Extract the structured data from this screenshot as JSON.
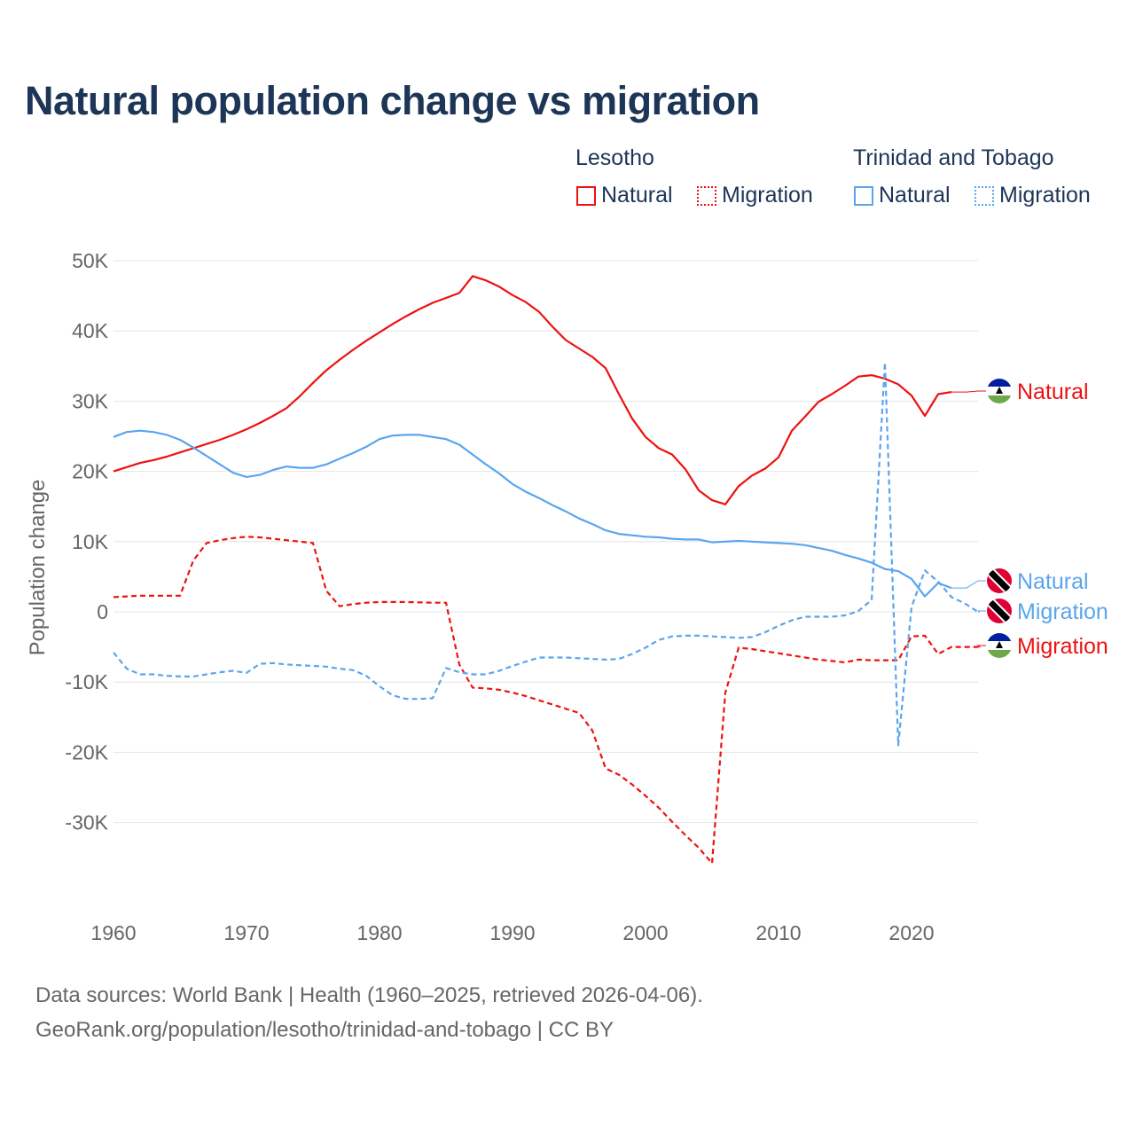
{
  "title": "Natural population change vs migration",
  "legend": {
    "groups": [
      {
        "name": "Lesotho",
        "items": [
          {
            "label": "Natural",
            "style": "solid"
          },
          {
            "label": "Migration",
            "style": "dotted"
          }
        ],
        "color": "#ee1111"
      },
      {
        "name": "Trinidad and Tobago",
        "items": [
          {
            "label": "Natural",
            "style": "solid"
          },
          {
            "label": "Migration",
            "style": "dotted"
          }
        ],
        "color": "#5aa5ee"
      }
    ]
  },
  "footer": {
    "line1": "Data sources: World Bank | Health (1960–2025, retrieved 2026-04-06).",
    "line2": "GeoRank.org/population/lesotho/trinidad-and-tobago | CC BY"
  },
  "chart_data": {
    "type": "line",
    "title": "Natural population change vs migration",
    "xlabel": "",
    "ylabel": "Population change",
    "xlim": [
      1960,
      2025
    ],
    "ylim": [
      -38000,
      52000
    ],
    "x_ticks": [
      1960,
      1970,
      1980,
      1990,
      2000,
      2010,
      2020
    ],
    "x_tick_labels": [
      "1960",
      "1970",
      "1980",
      "1990",
      "2000",
      "2010",
      "2020"
    ],
    "y_ticks": [
      -30000,
      -20000,
      -10000,
      0,
      10000,
      20000,
      30000,
      40000,
      50000
    ],
    "y_tick_labels": [
      "-30K",
      "-20K",
      "-10K",
      "0",
      "10K",
      "20K",
      "30K",
      "40K",
      "50K"
    ],
    "grid": true,
    "legend_position": "top-right",
    "series": [
      {
        "name": "Lesotho Natural",
        "country": "Lesotho",
        "end_label": "Natural",
        "flag": "lesotho",
        "color": "#ee1111",
        "dash": false,
        "start_year": 1960,
        "values": [
          20000,
          20600,
          21200,
          21600,
          22100,
          22700,
          23300,
          23900,
          24500,
          25200,
          26000,
          26900,
          27900,
          29000,
          30700,
          32600,
          34400,
          35900,
          37300,
          38600,
          39800,
          41000,
          42100,
          43100,
          44000,
          44700,
          45400,
          47800,
          47200,
          46300,
          45100,
          44100,
          42700,
          40600,
          38700,
          37500,
          36300,
          34700,
          31000,
          27500,
          24900,
          23300,
          22400,
          20300,
          17300,
          15900,
          15300,
          17900,
          19400,
          20400,
          22000,
          25800,
          27800,
          29900,
          31000,
          32200,
          33500,
          33700,
          33200,
          32400,
          30800,
          27900,
          31000,
          31300
        ]
      },
      {
        "name": "Lesotho Migration",
        "country": "Lesotho",
        "end_label": "Migration",
        "flag": "lesotho",
        "color": "#ee1111",
        "dash": true,
        "start_year": 1960,
        "values": [
          2100,
          2200,
          2300,
          2300,
          2300,
          2300,
          7300,
          9800,
          10200,
          10500,
          10700,
          10600,
          10400,
          10200,
          10000,
          9800,
          3000,
          800,
          1100,
          1300,
          1400,
          1400,
          1400,
          1350,
          1300,
          1300,
          -7500,
          -10800,
          -10900,
          -11100,
          -11500,
          -12000,
          -12600,
          -13200,
          -13800,
          -14400,
          -16900,
          -22300,
          -23200,
          -24600,
          -26200,
          -27900,
          -29900,
          -31800,
          -33600,
          -35800,
          -11500,
          -5100,
          -5300,
          -5600,
          -5900,
          -6200,
          -6500,
          -6800,
          -7000,
          -7200,
          -6800,
          -6900,
          -6900,
          -6900,
          -3500,
          -3400,
          -6000,
          -5000,
          -5000,
          -5000
        ]
      },
      {
        "name": "Trinidad and Tobago Natural",
        "country": "Trinidad and Tobago",
        "end_label": "Natural",
        "flag": "trinidad-and-tobago",
        "color": "#5aa5ee",
        "dash": false,
        "start_year": 1960,
        "values": [
          24900,
          25600,
          25800,
          25600,
          25200,
          24500,
          23400,
          22200,
          21000,
          19800,
          19200,
          19500,
          20200,
          20700,
          20500,
          20500,
          21000,
          21800,
          22600,
          23500,
          24600,
          25100,
          25200,
          25200,
          24900,
          24600,
          23800,
          22400,
          21000,
          19700,
          18200,
          17100,
          16200,
          15200,
          14300,
          13300,
          12500,
          11600,
          11100,
          10900,
          10700,
          10600,
          10400,
          10300,
          10300,
          9900,
          10000,
          10100,
          10000,
          9900,
          9800,
          9700,
          9500,
          9100,
          8700,
          8100,
          7600,
          7000,
          6100,
          5800,
          4700,
          2200,
          4100,
          3400
        ]
      },
      {
        "name": "Trinidad and Tobago Migration",
        "country": "Trinidad and Tobago",
        "end_label": "Migration",
        "flag": "trinidad-and-tobago",
        "color": "#5aa5ee",
        "dash": true,
        "start_year": 1960,
        "values": [
          -5800,
          -8100,
          -8900,
          -8900,
          -9100,
          -9200,
          -9200,
          -8900,
          -8600,
          -8400,
          -8700,
          -7400,
          -7300,
          -7500,
          -7600,
          -7700,
          -7800,
          -8100,
          -8300,
          -9100,
          -10600,
          -11900,
          -12400,
          -12400,
          -12300,
          -8000,
          -8600,
          -8900,
          -8900,
          -8400,
          -7700,
          -7100,
          -6500,
          -6500,
          -6500,
          -6600,
          -6700,
          -6800,
          -6700,
          -6000,
          -5100,
          -4000,
          -3500,
          -3400,
          -3400,
          -3500,
          -3600,
          -3700,
          -3600,
          -2900,
          -2000,
          -1200,
          -700,
          -700,
          -700,
          -500,
          100,
          1700,
          35500,
          -19000,
          700,
          5900,
          4300,
          2100,
          1200,
          0
        ]
      }
    ]
  }
}
